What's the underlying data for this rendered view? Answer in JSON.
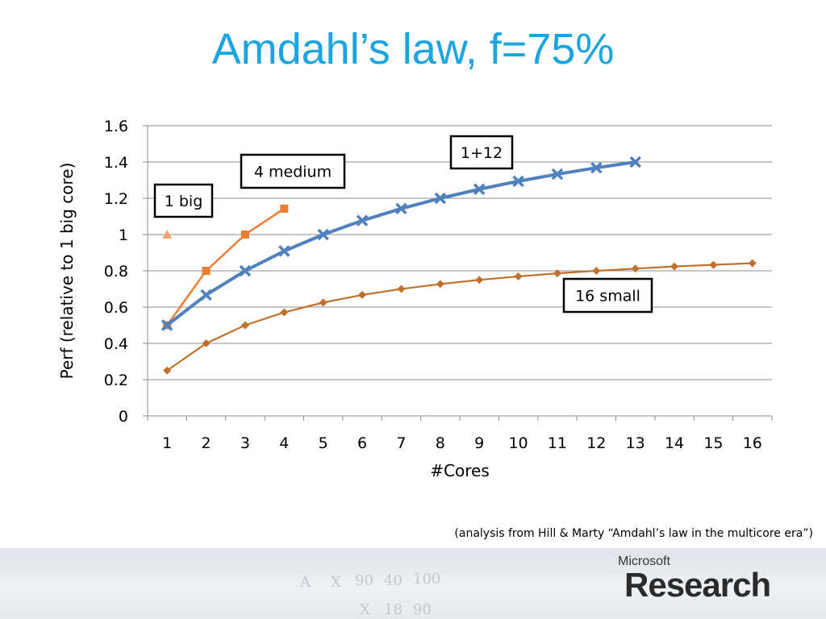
{
  "slide": {
    "title": "Amdahl’s law, f=75%",
    "citation": "(analysis from Hill & Marty “Amdahl’s law in the multicore era”)",
    "logo": {
      "company": "Microsoft",
      "product": "Research"
    },
    "background_scribbles": [
      "A",
      "X",
      "90",
      "40",
      "100",
      "X",
      "18",
      "90"
    ]
  },
  "chart_data": {
    "type": "line",
    "title": "",
    "xlabel": "#Cores",
    "ylabel": "Perf (relative to 1 big core)",
    "categories": [
      "1",
      "2",
      "3",
      "4",
      "5",
      "6",
      "7",
      "8",
      "9",
      "10",
      "11",
      "12",
      "13",
      "14",
      "15",
      "16"
    ],
    "ylim": [
      0,
      1.6
    ],
    "yticks": [
      "0",
      "0.2",
      "0.4",
      "0.6",
      "0.8",
      "1",
      "1.2",
      "1.4",
      "1.6"
    ],
    "grid": true,
    "series": [
      {
        "name": "1 big",
        "color": "#f5a26e",
        "marker": "triangle",
        "x": [
          1
        ],
        "y": [
          1.0
        ]
      },
      {
        "name": "4 medium",
        "color": "#ed7d31",
        "marker": "square",
        "x": [
          1,
          2,
          3,
          4
        ],
        "y": [
          0.5,
          0.8,
          1.0,
          1.143
        ]
      },
      {
        "name": "1+12",
        "color": "#4f81bd",
        "marker": "x",
        "x": [
          1,
          2,
          3,
          4,
          5,
          6,
          7,
          8,
          9,
          10,
          11,
          12,
          13
        ],
        "y": [
          0.5,
          0.667,
          0.8,
          0.909,
          1.0,
          1.077,
          1.143,
          1.2,
          1.25,
          1.294,
          1.333,
          1.368,
          1.4
        ]
      },
      {
        "name": "16 small",
        "color": "#c0712c",
        "marker": "diamond",
        "x": [
          1,
          2,
          3,
          4,
          5,
          6,
          7,
          8,
          9,
          10,
          11,
          12,
          13,
          14,
          15,
          16
        ],
        "y": [
          0.25,
          0.4,
          0.5,
          0.571,
          0.625,
          0.667,
          0.7,
          0.727,
          0.75,
          0.769,
          0.786,
          0.8,
          0.812,
          0.824,
          0.833,
          0.842
        ]
      }
    ],
    "annotations": [
      "1 big",
      "4 medium",
      "1+12",
      "16 small"
    ]
  }
}
